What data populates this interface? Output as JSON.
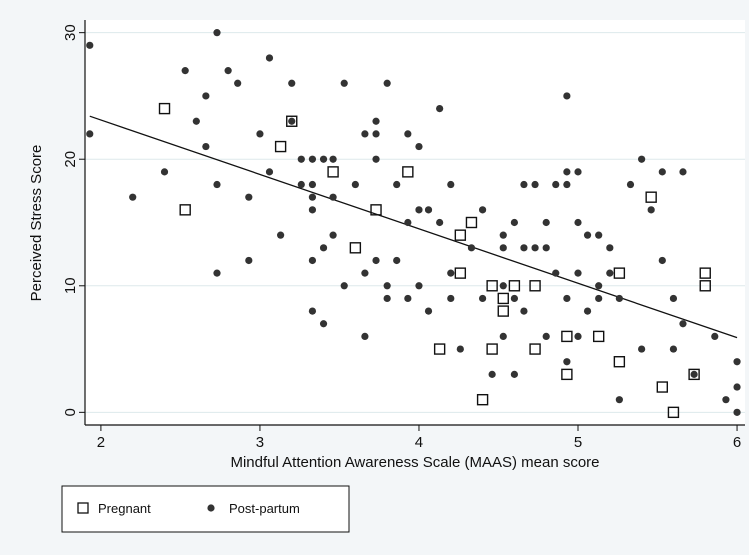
{
  "chart_data": {
    "type": "scatter",
    "title": "",
    "xlabel": "Mindful Attention Awareness Scale (MAAS) mean score",
    "ylabel": "Perceived Stress Score",
    "xlim": [
      1.9,
      6.05
    ],
    "ylim": [
      -1,
      31
    ],
    "x_ticks": [
      2,
      3,
      4,
      5,
      6
    ],
    "y_ticks": [
      0,
      10,
      20,
      30
    ],
    "grid": true,
    "legend_position": "bottom-left",
    "series": [
      {
        "name": "Pregnant",
        "marker": "hollow-square",
        "color": "#111111",
        "points": [
          [
            2.4,
            24
          ],
          [
            2.53,
            16
          ],
          [
            3.13,
            21
          ],
          [
            3.2,
            23
          ],
          [
            3.46,
            19
          ],
          [
            3.73,
            16
          ],
          [
            3.6,
            13
          ],
          [
            3.93,
            19
          ],
          [
            4.13,
            5
          ],
          [
            4.26,
            14
          ],
          [
            4.33,
            15
          ],
          [
            4.26,
            11
          ],
          [
            4.4,
            1
          ],
          [
            4.46,
            10
          ],
          [
            4.46,
            5
          ],
          [
            4.53,
            9
          ],
          [
            4.53,
            8
          ],
          [
            4.6,
            10
          ],
          [
            4.73,
            10
          ],
          [
            4.73,
            5
          ],
          [
            4.93,
            6
          ],
          [
            4.93,
            3
          ],
          [
            5.13,
            6
          ],
          [
            5.26,
            11
          ],
          [
            5.26,
            4
          ],
          [
            5.46,
            17
          ],
          [
            5.53,
            2
          ],
          [
            5.6,
            0
          ],
          [
            5.73,
            3
          ],
          [
            5.8,
            11
          ],
          [
            5.8,
            10
          ]
        ]
      },
      {
        "name": "Post-partum",
        "marker": "filled-circle",
        "color": "#333333",
        "points": [
          [
            1.93,
            29
          ],
          [
            1.93,
            22
          ],
          [
            2.2,
            17
          ],
          [
            2.4,
            19
          ],
          [
            2.53,
            27
          ],
          [
            2.6,
            23
          ],
          [
            2.66,
            25
          ],
          [
            2.66,
            21
          ],
          [
            2.73,
            30
          ],
          [
            2.73,
            18
          ],
          [
            2.73,
            11
          ],
          [
            2.8,
            27
          ],
          [
            2.86,
            26
          ],
          [
            2.93,
            17
          ],
          [
            2.93,
            12
          ],
          [
            3.0,
            22
          ],
          [
            3.06,
            28
          ],
          [
            3.06,
            19
          ],
          [
            3.13,
            14
          ],
          [
            3.2,
            26
          ],
          [
            3.2,
            23
          ],
          [
            3.26,
            20
          ],
          [
            3.26,
            18
          ],
          [
            3.33,
            20
          ],
          [
            3.33,
            18
          ],
          [
            3.33,
            17
          ],
          [
            3.33,
            16
          ],
          [
            3.33,
            12
          ],
          [
            3.33,
            8
          ],
          [
            3.4,
            20
          ],
          [
            3.4,
            13
          ],
          [
            3.4,
            7
          ],
          [
            3.46,
            20
          ],
          [
            3.46,
            17
          ],
          [
            3.46,
            14
          ],
          [
            3.53,
            26
          ],
          [
            3.53,
            10
          ],
          [
            3.6,
            18
          ],
          [
            3.66,
            22
          ],
          [
            3.66,
            11
          ],
          [
            3.66,
            6
          ],
          [
            3.73,
            23
          ],
          [
            3.73,
            22
          ],
          [
            3.73,
            20
          ],
          [
            3.73,
            12
          ],
          [
            3.8,
            26
          ],
          [
            3.8,
            10
          ],
          [
            3.8,
            9
          ],
          [
            3.86,
            18
          ],
          [
            3.86,
            12
          ],
          [
            3.93,
            22
          ],
          [
            3.93,
            15
          ],
          [
            3.93,
            9
          ],
          [
            4.0,
            21
          ],
          [
            4.0,
            16
          ],
          [
            4.0,
            10
          ],
          [
            4.06,
            16
          ],
          [
            4.06,
            8
          ],
          [
            4.13,
            24
          ],
          [
            4.13,
            15
          ],
          [
            4.2,
            18
          ],
          [
            4.2,
            11
          ],
          [
            4.2,
            9
          ],
          [
            4.26,
            5
          ],
          [
            4.33,
            13
          ],
          [
            4.4,
            16
          ],
          [
            4.4,
            9
          ],
          [
            4.46,
            3
          ],
          [
            4.53,
            14
          ],
          [
            4.53,
            13
          ],
          [
            4.53,
            10
          ],
          [
            4.53,
            6
          ],
          [
            4.6,
            15
          ],
          [
            4.6,
            9
          ],
          [
            4.6,
            3
          ],
          [
            4.66,
            18
          ],
          [
            4.66,
            13
          ],
          [
            4.66,
            8
          ],
          [
            4.73,
            18
          ],
          [
            4.73,
            13
          ],
          [
            4.8,
            15
          ],
          [
            4.8,
            13
          ],
          [
            4.8,
            6
          ],
          [
            4.86,
            18
          ],
          [
            4.86,
            11
          ],
          [
            4.93,
            25
          ],
          [
            4.93,
            19
          ],
          [
            4.93,
            18
          ],
          [
            4.93,
            9
          ],
          [
            4.93,
            4
          ],
          [
            5.0,
            19
          ],
          [
            5.0,
            15
          ],
          [
            5.0,
            11
          ],
          [
            5.0,
            6
          ],
          [
            5.06,
            14
          ],
          [
            5.06,
            8
          ],
          [
            5.13,
            14
          ],
          [
            5.13,
            10
          ],
          [
            5.13,
            9
          ],
          [
            5.2,
            13
          ],
          [
            5.2,
            11
          ],
          [
            5.26,
            9
          ],
          [
            5.26,
            1
          ],
          [
            5.33,
            18
          ],
          [
            5.4,
            20
          ],
          [
            5.4,
            5
          ],
          [
            5.46,
            16
          ],
          [
            5.53,
            19
          ],
          [
            5.53,
            12
          ],
          [
            5.6,
            9
          ],
          [
            5.6,
            5
          ],
          [
            5.66,
            19
          ],
          [
            5.66,
            7
          ],
          [
            5.73,
            3
          ],
          [
            5.86,
            6
          ],
          [
            5.93,
            1
          ],
          [
            6.0,
            4
          ],
          [
            6.0,
            2
          ],
          [
            6.0,
            0
          ]
        ]
      }
    ],
    "fit_line": {
      "x": [
        1.93,
        6.0
      ],
      "y": [
        23.4,
        5.9
      ]
    }
  }
}
